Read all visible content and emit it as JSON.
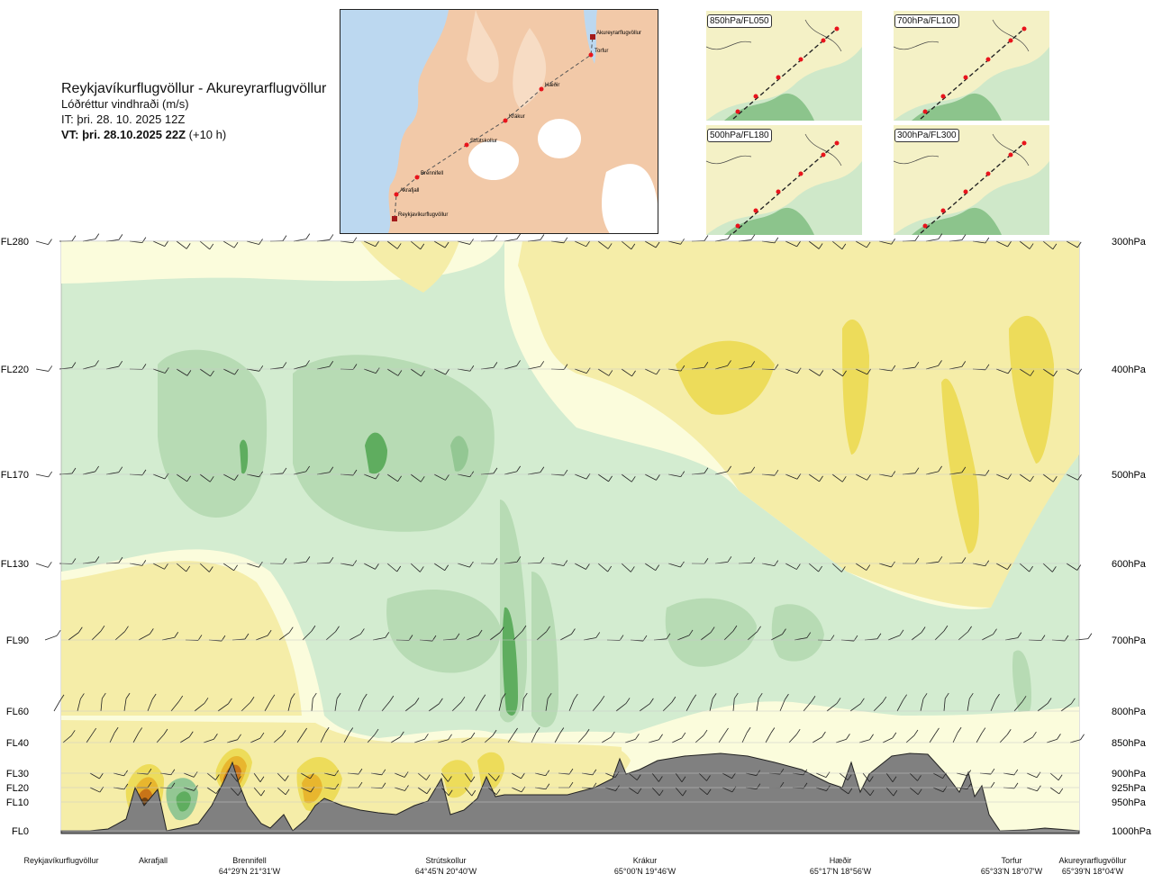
{
  "header": {
    "route": "Reykjavíkurflugvöllur - Akureyrarflugvöllur",
    "parameter": "Lóðréttur vindhraði (m/s)",
    "issue_time": "IT: þri. 28. 10. 2025 12Z",
    "valid_time": "VT: þri. 28.10.2025 22Z",
    "valid_offset": "(+10 h)"
  },
  "map": {
    "waypoints": [
      "Akureyrarflugvöllur",
      "Torfur",
      "Hæðir",
      "Krákur",
      "Strútskollur",
      "Brennifell",
      "Akrafjall",
      "Reykjavíkurflugvöllur"
    ],
    "colors": {
      "sea": "#bcd8f0",
      "land": "#f2c9a8",
      "ice": "#ffffff",
      "route": "#555555",
      "waypoint": "#e8141c"
    }
  },
  "mini_maps": [
    {
      "label": "850hPa/FL050"
    },
    {
      "label": "700hPa/FL100"
    },
    {
      "label": "500hPa/FL180"
    },
    {
      "label": "300hPa/FL300"
    }
  ],
  "chart_data": {
    "type": "cross-section",
    "title": "Lóðréttur vindhraði (m/s)",
    "left_axis_levels": [
      "FL280",
      "FL220",
      "FL170",
      "FL130",
      "FL90",
      "FL60",
      "FL40",
      "FL30",
      "FL20",
      "FL10",
      "FL0"
    ],
    "right_axis_levels": [
      "300hPa",
      "400hPa",
      "500hPa",
      "600hPa",
      "700hPa",
      "800hPa",
      "850hPa",
      "900hPa",
      "925hPa",
      "950hPa",
      "1000hPa"
    ],
    "pressure_levels_hpa": [
      300,
      400,
      500,
      600,
      700,
      800,
      850,
      900,
      925,
      950,
      1000
    ],
    "x_points": [
      {
        "name": "Reykjavíkurflugvöllur",
        "coord": ""
      },
      {
        "name": "Akrafjall",
        "coord": ""
      },
      {
        "name": "Brennifell",
        "coord": "64°29'N 21°31'W"
      },
      {
        "name": "Strútskollur",
        "coord": "64°45'N 20°40'W"
      },
      {
        "name": "Krákur",
        "coord": "65°00'N 19°46'W"
      },
      {
        "name": "Hæðir",
        "coord": "65°17'N 18°56'W"
      },
      {
        "name": "Torfur",
        "coord": "65°33'N 18°07'W"
      },
      {
        "name": "Akureyrarflugvöllur",
        "coord": "65°39'N 18°04'W"
      }
    ],
    "colors": {
      "strong_up": "#5fad5f",
      "up": "#93c793",
      "weak_up": "#b7dbb4",
      "very_weak_up": "#d3ecd0",
      "neutral": "#fbfcdc",
      "weak_down": "#f5eda8",
      "down": "#eddc5a",
      "strong_down": "#e8b62e",
      "very_strong_down": "#c87418",
      "extreme_down": "#6e4011",
      "terrain": "#808080"
    }
  }
}
